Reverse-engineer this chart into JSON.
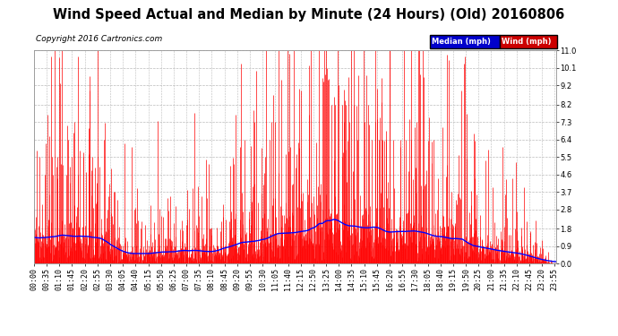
{
  "title": "Wind Speed Actual and Median by Minute (24 Hours) (Old) 20160806",
  "copyright": "Copyright 2016 Cartronics.com",
  "yticks": [
    0.0,
    0.9,
    1.8,
    2.8,
    3.7,
    4.6,
    5.5,
    6.4,
    7.3,
    8.2,
    9.2,
    10.1,
    11.0
  ],
  "wind_color": "#ff0000",
  "median_color": "#0000ff",
  "bg_color": "#ffffff",
  "plot_bg": "#ffffff",
  "grid_color": "#bbbbbb",
  "legend_median_bg": "#0000cc",
  "legend_wind_bg": "#cc0000",
  "title_fontsize": 10.5,
  "copyright_fontsize": 6.5,
  "tick_fontsize": 6,
  "n_minutes": 1440,
  "x_tick_interval": 35,
  "x_tick_labels": [
    "00:00",
    "00:35",
    "01:10",
    "01:45",
    "02:20",
    "02:55",
    "03:30",
    "04:05",
    "04:40",
    "05:15",
    "05:50",
    "06:25",
    "07:00",
    "07:35",
    "08:10",
    "08:45",
    "09:20",
    "09:55",
    "10:30",
    "11:05",
    "11:40",
    "12:15",
    "12:50",
    "13:25",
    "14:00",
    "14:35",
    "15:10",
    "15:45",
    "16:20",
    "16:55",
    "17:30",
    "18:05",
    "18:40",
    "19:15",
    "19:50",
    "20:25",
    "21:00",
    "21:35",
    "22:10",
    "22:45",
    "23:20",
    "23:55"
  ]
}
